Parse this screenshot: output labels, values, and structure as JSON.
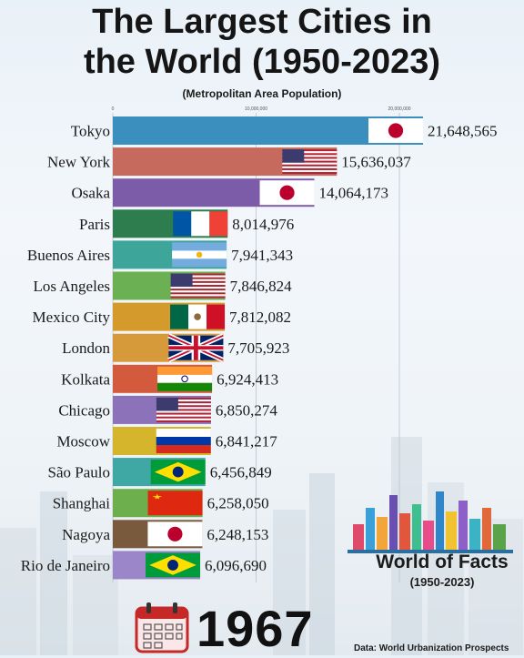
{
  "title_line1": "The Largest Cities in",
  "title_line2": "the World (1950-2023)",
  "subtitle": "(Metropolitan Area Population)",
  "year": "1967",
  "brand": {
    "name": "World of Facts",
    "years": "(1950-2023)"
  },
  "source": "Data: World Urbanization Prospects",
  "chart_data": {
    "type": "bar",
    "orientation": "horizontal",
    "title": "The Largest Cities in the World (1950-2023)",
    "subtitle": "(Metropolitan Area Population)",
    "xlim": [
      0,
      21648565
    ],
    "ticks": [
      {
        "value": 0,
        "label": "0"
      },
      {
        "value": 10000000,
        "label": "10,000,000"
      },
      {
        "value": 20000000,
        "label": "20,000,000"
      }
    ],
    "categories": [
      "Tokyo",
      "New York",
      "Osaka",
      "Paris",
      "Buenos Aires",
      "Los Angeles",
      "Mexico City",
      "London",
      "Kolkata",
      "Chicago",
      "Moscow",
      "São Paulo",
      "Shanghai",
      "Nagoya",
      "Rio de Janeiro"
    ],
    "values": [
      21648565,
      15636037,
      14064173,
      8014976,
      7941343,
      7846824,
      7812082,
      7705923,
      6924413,
      6850274,
      6841217,
      6456849,
      6258050,
      6248153,
      6096690
    ],
    "value_labels": [
      "21,648,565",
      "15,636,037",
      "14,064,173",
      "8,014,976",
      "7,941,343",
      "7,846,824",
      "7,812,082",
      "7,705,923",
      "6,924,413",
      "6,850,274",
      "6,841,217",
      "6,456,849",
      "6,258,050",
      "6,248,153",
      "6,096,690"
    ],
    "colors": [
      "#3b8fbe",
      "#c56a5c",
      "#7c5ca9",
      "#2e7d4f",
      "#3ea59a",
      "#6bb052",
      "#d49a2c",
      "#d69a3a",
      "#d35a3c",
      "#8c72b8",
      "#d4b52c",
      "#3fa7a4",
      "#6dae4d",
      "#7a5a3c",
      "#9b86c9"
    ],
    "flags": [
      "japan",
      "usa",
      "japan",
      "france",
      "argentina",
      "usa",
      "mexico",
      "uk",
      "india",
      "usa",
      "russia",
      "brazil",
      "china",
      "japan",
      "brazil"
    ],
    "grid": true
  }
}
